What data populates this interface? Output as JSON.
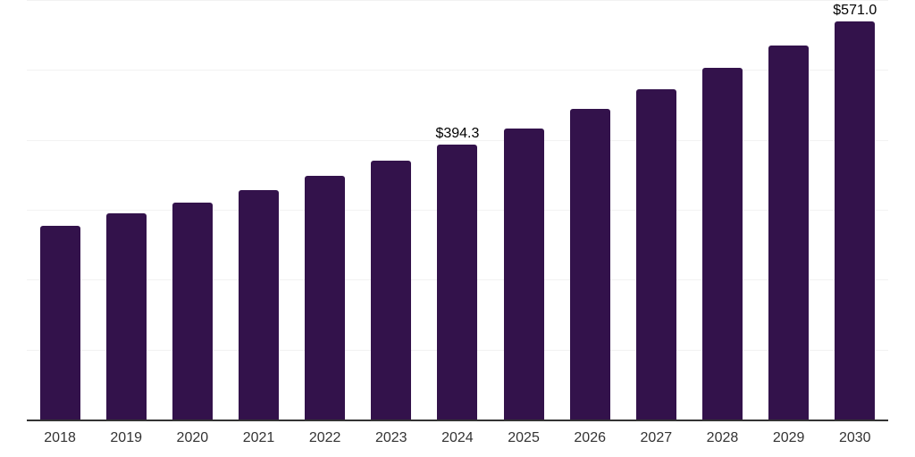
{
  "chart_data": {
    "type": "bar",
    "title": "",
    "xlabel": "",
    "ylabel": "",
    "categories": [
      "2018",
      "2019",
      "2020",
      "2021",
      "2022",
      "2023",
      "2024",
      "2025",
      "2026",
      "2027",
      "2028",
      "2029",
      "2030"
    ],
    "values": [
      278,
      296,
      312,
      330,
      350,
      372,
      394.3,
      418,
      445,
      473,
      504,
      536,
      571.0
    ],
    "data_labels": [
      "",
      "",
      "",
      "",
      "",
      "",
      "$394.3",
      "",
      "",
      "",
      "",
      "",
      "$571.0"
    ],
    "ylim": [
      0,
      600
    ],
    "gridline_step": 100,
    "grid": "horizontal-only",
    "legend": "none",
    "y_tick_labels_visible": false,
    "colors": {
      "bar": "#33124b",
      "axis_line": "#333333",
      "gridline": "#f2f2f2",
      "x_tick_label": "#333333",
      "data_label": "#000000",
      "background": "#ffffff"
    }
  }
}
